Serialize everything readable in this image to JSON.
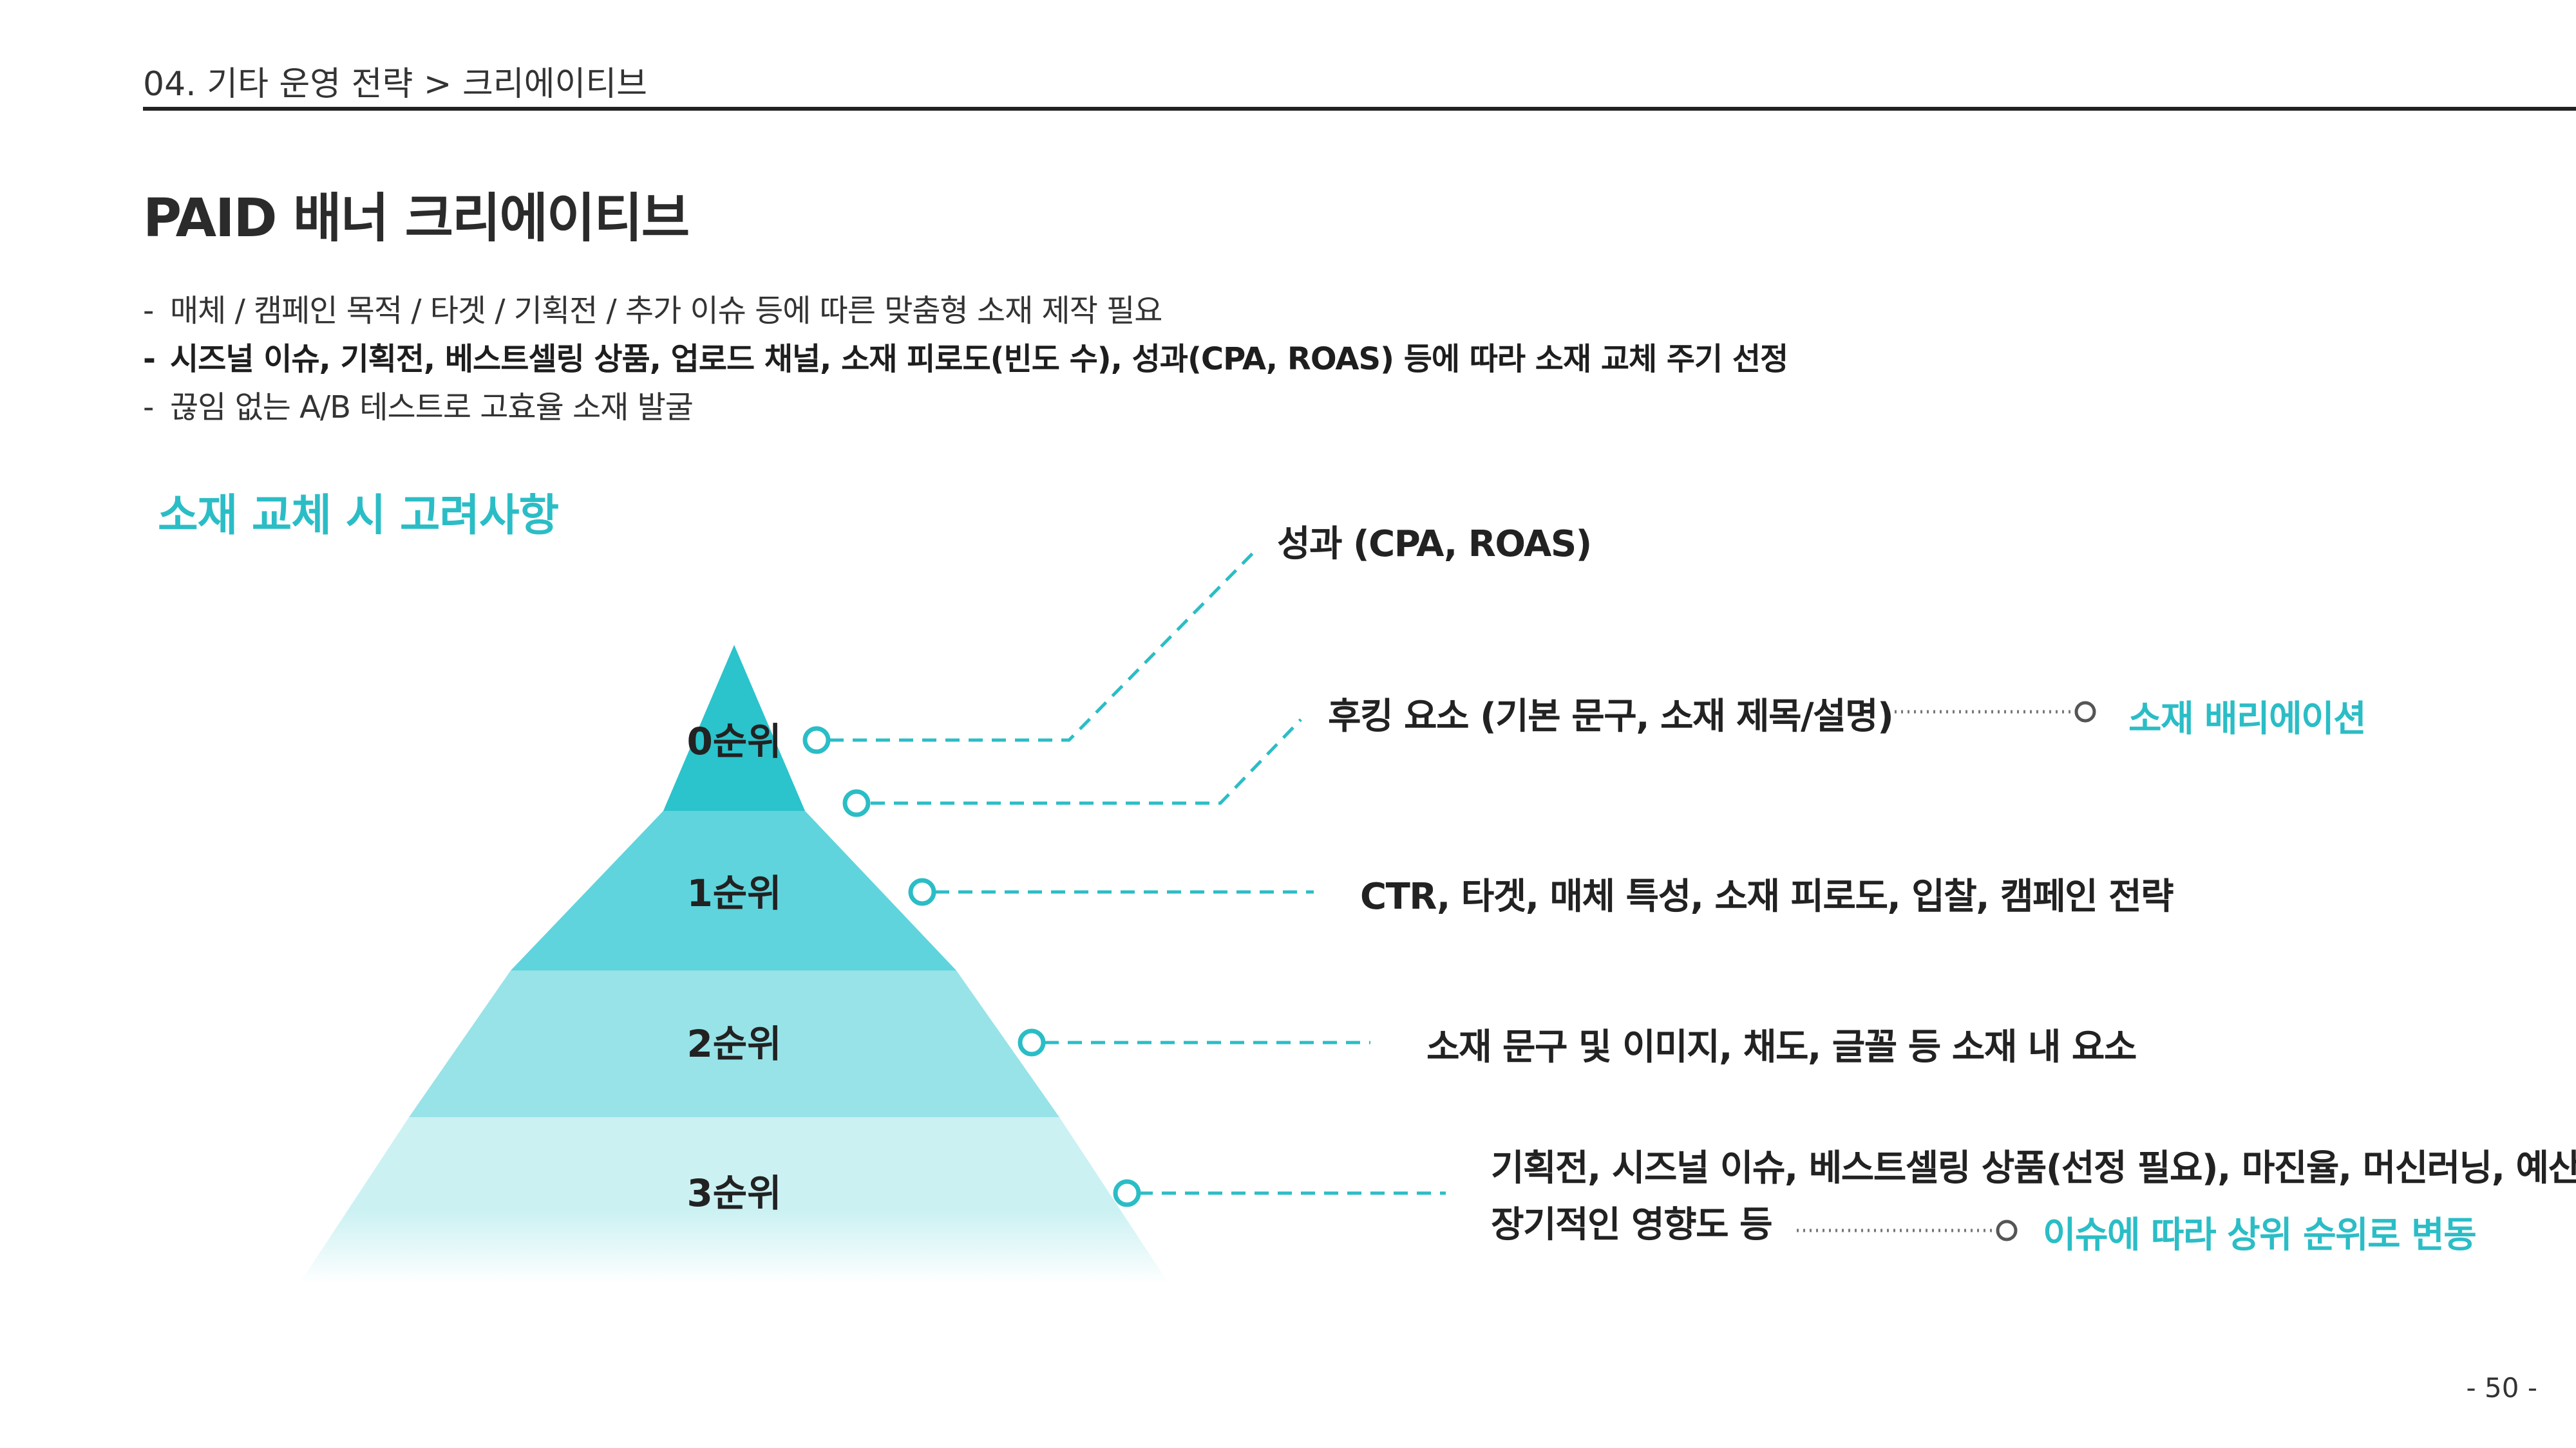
{
  "header": {
    "breadcrumb": "04. 기타 운영 전략  >  크리에이티브"
  },
  "title": "PAID 배너 크리에이티브",
  "bullets": [
    {
      "text": "매체 / 캠페인 목적 / 타겟 / 기획전 / 추가 이슈 등에 따른 맞춤형 소재 제작 필요",
      "bold": false
    },
    {
      "text": "시즈널 이슈, 기획전, 베스트셀링 상품, 업로드 채널, 소재 피로도(빈도 수), 성과(CPA, ROAS) 등에 따라 소재 교체 주기 선정",
      "bold": true
    },
    {
      "text": "끊임 없는 A/B 테스트로 고효율 소재 발굴",
      "bold": false
    }
  ],
  "section_title": "소재 교체 시 고려사항",
  "pyramid": {
    "levels": [
      {
        "label": "0순위",
        "color": "#2bc3cc"
      },
      {
        "label": "1순위",
        "color": "#5fd4dc"
      },
      {
        "label": "2순위",
        "color": "#97e3e8"
      },
      {
        "label": "3순위",
        "color": "#cbf1f3"
      }
    ]
  },
  "callouts": {
    "performance": "성과 (CPA, ROAS)",
    "hooking": "후킹 요소 (기본 문구, 소재 제목/설명)",
    "hooking_result": "소재 배리에이션",
    "level1": "CTR, 타겟, 매체 특성, 소재 피로도, 입찰, 캠페인 전략",
    "level2": "소재 문구 및 이미지, 채도, 글꼴 등 소재 내 요소",
    "level3_line1": "기획전, 시즈널 이슈, 베스트셀링 상품(선정 필요), 마진율, 머신러닝, 예산,",
    "level3_line2": "장기적인 영향도 등",
    "level3_result": "이슈에 따라 상위 순위로 변동"
  },
  "page_number": "- 50 -",
  "colors": {
    "accent": "#2bbdc6",
    "text": "#222222"
  }
}
